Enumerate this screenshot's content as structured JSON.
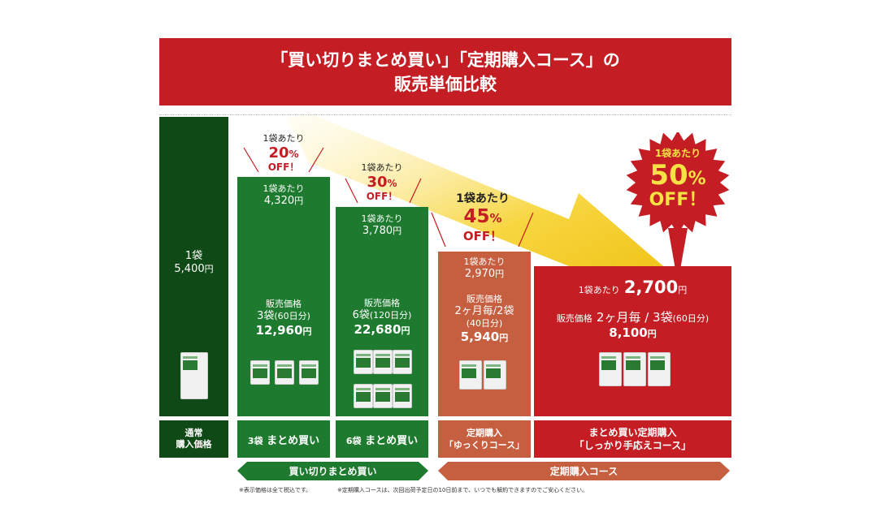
{
  "title": {
    "line1": "「買い切りまとめ買い」「定期購入コース」の",
    "line2": "販売単価比較"
  },
  "chart_data": {
    "type": "bar",
    "categories": [
      "通常購入価格",
      "3袋 まとめ買い",
      "6袋 まとめ買い",
      "定期購入「ゆっくりコース」",
      "まとめ買い定期購入「しっかり手応えコース」"
    ],
    "values": [
      5400,
      4320,
      3780,
      2970,
      2700
    ],
    "ylim": [
      0,
      5400
    ],
    "unit": "円",
    "grid": false
  },
  "columns": [
    {
      "label": "通常\n購入価格",
      "per_bag_label": "1袋",
      "per_bag_value": "5,400",
      "yen": "円"
    },
    {
      "label_count": "3袋",
      "label_text": " まとめ買い",
      "per_bag_label": "1袋あたり",
      "per_bag_value": "4,320",
      "yen": "円",
      "sale_label": "販売価格",
      "qty": "3袋",
      "qty_note": "(60日分)",
      "total": "12,960",
      "off_per": "1袋あたり",
      "off_pct": "20",
      "off_sign": "%",
      "off_word": "OFF！"
    },
    {
      "label_count": "6袋",
      "label_text": " まとめ買い",
      "per_bag_label": "1袋あたり",
      "per_bag_value": "3,780",
      "yen": "円",
      "sale_label": "販売価格",
      "qty": "6袋",
      "qty_note": "(120日分)",
      "total": "22,680",
      "off_per": "1袋あたり",
      "off_pct": "30",
      "off_sign": "%",
      "off_word": "OFF！"
    },
    {
      "label1": "定期購入",
      "label2": "「ゆっくりコース」",
      "per_bag_label": "1袋あたり",
      "per_bag_value": "2,970",
      "yen": "円",
      "sale_label": "販売価格",
      "qty": "2ヶ月毎/2袋",
      "qty_note": "(40日分)",
      "total": "5,940",
      "off_per": "1袋あたり",
      "off_pct": "45",
      "off_sign": "%",
      "off_word": "OFF！"
    },
    {
      "label1": "まとめ買い定期購入",
      "label2": "「しっかり手応えコース」",
      "per_bag_label": "1袋あたり",
      "per_bag_value": "2,700",
      "yen": "円",
      "sale_label": "販売価格",
      "qty": "2ヶ月毎 / 3袋",
      "qty_note": "(60日分)",
      "total": "8,100",
      "off_per": "1袋あたり",
      "off_pct": "50",
      "off_sign": "%",
      "off_word": "OFF！"
    }
  ],
  "groups": {
    "left": "買い切りまとめ買い",
    "right": "定期購入コース"
  },
  "footnotes": {
    "left": "※表示価格は全て税込です。",
    "right": "※定期購入コースは、次回出荷予定日の10日前まで、いつでも解約できますのでご安心ください。"
  },
  "colors": {
    "red": "#c41d23",
    "green": "#1e7a2e",
    "dark_green": "#0f4a16",
    "orange": "#c65e40",
    "arrow": "#f2c418"
  }
}
